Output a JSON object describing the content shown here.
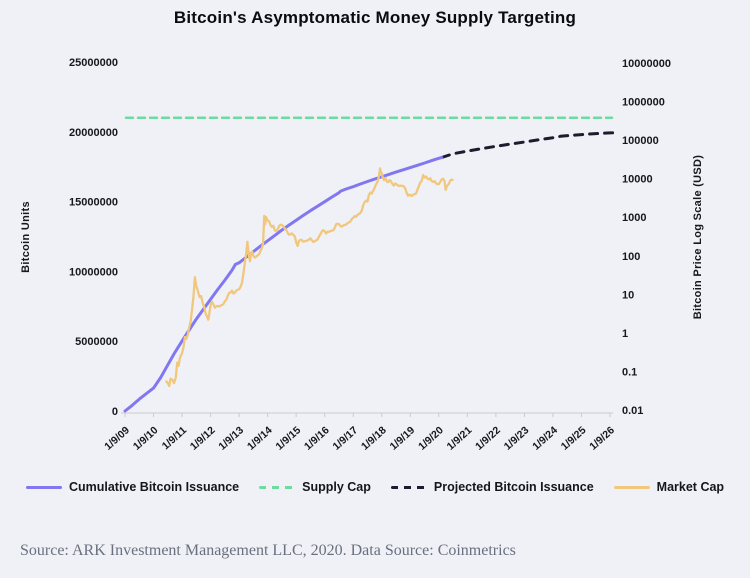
{
  "title": "Bitcoin's Asymptomatic Money Supply Targeting",
  "footer": {
    "source": "Source: ARK Investment Management LLC, 2020. Data Source: Coinmetrics"
  },
  "colors": {
    "background": "#f0f1f6",
    "axis": "#c9cad3",
    "text": "#17171f",
    "footer_text": "#68707f"
  },
  "chart_data": {
    "type": "line",
    "title": "Bitcoin's Asymptomatic Money Supply Targeting",
    "x_axis": {
      "tick_labels": [
        "1/9/09",
        "1/9/10",
        "1/9/11",
        "1/9/12",
        "1/9/13",
        "1/9/14",
        "1/9/15",
        "1/9/16",
        "1/9/17",
        "1/9/18",
        "1/9/19",
        "1/9/20",
        "1/9/21",
        "1/9/22",
        "1/9/23",
        "1/9/24",
        "1/9/25",
        "1/9/26"
      ],
      "range_years": [
        0,
        17
      ]
    },
    "y_axis_left": {
      "label": "Bitcoin Units",
      "scale": "linear",
      "range": [
        0,
        25000000
      ],
      "ticks": [
        0,
        5000000,
        10000000,
        15000000,
        20000000,
        25000000
      ]
    },
    "y_axis_right": {
      "label": "Bitcoin Price Log Scale (USD)",
      "scale": "log",
      "range": [
        0.01,
        10000000
      ],
      "ticks": [
        0.01,
        0.1,
        1,
        10,
        100,
        1000,
        10000,
        100000,
        1000000,
        10000000
      ]
    },
    "grid": false,
    "legend_position": "bottom",
    "series": [
      {
        "name": "Cumulative Bitcoin Issuance",
        "slug": "cumulative-bitcoin-issuance",
        "axis": "left",
        "color": "#8177f1",
        "style": "solid",
        "width": 3,
        "dash": "",
        "points": [
          [
            0,
            0
          ],
          [
            0.25,
            400000
          ],
          [
            0.5,
            850000
          ],
          [
            0.75,
            1250000
          ],
          [
            1,
            1640000
          ],
          [
            1.25,
            2400000
          ],
          [
            1.5,
            3300000
          ],
          [
            1.75,
            4200000
          ],
          [
            2,
            5020000
          ],
          [
            2.25,
            5800000
          ],
          [
            2.5,
            6580000
          ],
          [
            2.75,
            7300000
          ],
          [
            3,
            8000000
          ],
          [
            3.25,
            8700000
          ],
          [
            3.5,
            9380000
          ],
          [
            3.75,
            10080000
          ],
          [
            3.87,
            10500000
          ],
          [
            4,
            10613000
          ],
          [
            4.25,
            11020000
          ],
          [
            4.5,
            11420000
          ],
          [
            4.75,
            11810000
          ],
          [
            5,
            12190000
          ],
          [
            5.25,
            12580000
          ],
          [
            5.5,
            12960000
          ],
          [
            5.75,
            13320000
          ],
          [
            6,
            13670000
          ],
          [
            6.25,
            14010000
          ],
          [
            6.5,
            14350000
          ],
          [
            6.75,
            14670000
          ],
          [
            7,
            14990000
          ],
          [
            7.25,
            15320000
          ],
          [
            7.5,
            15640000
          ],
          [
            7.56,
            15750000
          ],
          [
            7.75,
            15900000
          ],
          [
            8,
            16070000
          ],
          [
            8.25,
            16260000
          ],
          [
            8.5,
            16440000
          ],
          [
            8.75,
            16610000
          ],
          [
            9,
            16775000
          ],
          [
            9.25,
            16950000
          ],
          [
            9.5,
            17115000
          ],
          [
            9.75,
            17280000
          ],
          [
            10,
            17435000
          ],
          [
            10.25,
            17600000
          ],
          [
            10.5,
            17765000
          ],
          [
            10.75,
            17935000
          ],
          [
            11,
            18100000
          ],
          [
            11.1,
            18160000
          ]
        ]
      },
      {
        "name": "Supply Cap",
        "slug": "supply-cap",
        "axis": "left",
        "color": "#6edba1",
        "style": "dashed",
        "width": 2.5,
        "dash": "7 5",
        "value": 21000000
      },
      {
        "name": "Projected Bitcoin Issuance",
        "slug": "projected-bitcoin-issuance",
        "axis": "left",
        "color": "#1c1c2e",
        "style": "dashed",
        "width": 3,
        "dash": "8 7",
        "points": [
          [
            11.1,
            18160000
          ],
          [
            11.4,
            18360000
          ],
          [
            11.6,
            18470000
          ],
          [
            12,
            18620000
          ],
          [
            12.5,
            18800000
          ],
          [
            13,
            18960000
          ],
          [
            13.5,
            19120000
          ],
          [
            14,
            19270000
          ],
          [
            14.5,
            19430000
          ],
          [
            15,
            19580000
          ],
          [
            15.3,
            19690000
          ],
          [
            15.7,
            19750000
          ],
          [
            16,
            19800000
          ],
          [
            16.5,
            19870000
          ],
          [
            17,
            19920000
          ],
          [
            17.1,
            19930000
          ]
        ]
      },
      {
        "name": "Market Cap",
        "slug": "market-cap",
        "axis": "right",
        "color": "#f1c77e",
        "style": "solid",
        "width": 2.3,
        "dash": "",
        "points": [
          [
            1.45,
            0.055
          ],
          [
            1.5,
            0.05
          ],
          [
            1.55,
            0.042
          ],
          [
            1.6,
            0.065
          ],
          [
            1.67,
            0.06
          ],
          [
            1.72,
            0.05
          ],
          [
            1.78,
            0.07
          ],
          [
            1.83,
            0.17
          ],
          [
            1.88,
            0.14
          ],
          [
            1.92,
            0.22
          ],
          [
            2,
            0.3
          ],
          [
            2.05,
            0.42
          ],
          [
            2.1,
            0.78
          ],
          [
            2.15,
            0.7
          ],
          [
            2.2,
            0.9
          ],
          [
            2.25,
            1.4
          ],
          [
            2.3,
            1.9
          ],
          [
            2.35,
            4
          ],
          [
            2.4,
            9
          ],
          [
            2.45,
            28
          ],
          [
            2.5,
            16
          ],
          [
            2.53,
            14
          ],
          [
            2.57,
            11
          ],
          [
            2.62,
            8.5
          ],
          [
            2.67,
            9
          ],
          [
            2.72,
            6
          ],
          [
            2.78,
            4.6
          ],
          [
            2.83,
            3.1
          ],
          [
            2.88,
            2.6
          ],
          [
            2.92,
            2.2
          ],
          [
            2.96,
            3.3
          ],
          [
            3,
            5.3
          ],
          [
            3.05,
            6.4
          ],
          [
            3.1,
            5.5
          ],
          [
            3.15,
            4.5
          ],
          [
            3.2,
            4.9
          ],
          [
            3.25,
            5
          ],
          [
            3.3,
            4.8
          ],
          [
            3.35,
            5.1
          ],
          [
            3.4,
            5.3
          ],
          [
            3.45,
            5.6
          ],
          [
            3.5,
            6.6
          ],
          [
            3.55,
            7.2
          ],
          [
            3.6,
            9
          ],
          [
            3.65,
            10.9
          ],
          [
            3.7,
            11.2
          ],
          [
            3.75,
            12.4
          ],
          [
            3.8,
            10.5
          ],
          [
            3.85,
            11
          ],
          [
            3.9,
            12.5
          ],
          [
            3.95,
            13.2
          ],
          [
            4,
            13.5
          ],
          [
            4.05,
            15.5
          ],
          [
            4.1,
            20
          ],
          [
            4.15,
            34
          ],
          [
            4.2,
            65
          ],
          [
            4.25,
            120
          ],
          [
            4.29,
            230
          ],
          [
            4.32,
            140
          ],
          [
            4.35,
            95
          ],
          [
            4.38,
            72
          ],
          [
            4.42,
            118
          ],
          [
            4.46,
            128
          ],
          [
            4.5,
            100
          ],
          [
            4.55,
            90
          ],
          [
            4.6,
            95
          ],
          [
            4.65,
            103
          ],
          [
            4.7,
            110
          ],
          [
            4.75,
            133
          ],
          [
            4.8,
            160
          ],
          [
            4.84,
            210
          ],
          [
            4.88,
            1080
          ],
          [
            4.91,
            650
          ],
          [
            4.94,
            1020
          ],
          [
            5,
            820
          ],
          [
            5.05,
            780
          ],
          [
            5.1,
            625
          ],
          [
            5.15,
            560
          ],
          [
            5.2,
            600
          ],
          [
            5.25,
            455
          ],
          [
            5.3,
            440
          ],
          [
            5.35,
            480
          ],
          [
            5.4,
            590
          ],
          [
            5.45,
            640
          ],
          [
            5.5,
            625
          ],
          [
            5.55,
            585
          ],
          [
            5.6,
            505
          ],
          [
            5.65,
            475
          ],
          [
            5.7,
            400
          ],
          [
            5.75,
            350
          ],
          [
            5.8,
            365
          ],
          [
            5.85,
            380
          ],
          [
            5.9,
            345
          ],
          [
            5.95,
            320
          ],
          [
            6,
            222
          ],
          [
            6.05,
            180
          ],
          [
            6.1,
            245
          ],
          [
            6.15,
            260
          ],
          [
            6.2,
            255
          ],
          [
            6.25,
            232
          ],
          [
            6.3,
            238
          ],
          [
            6.35,
            242
          ],
          [
            6.4,
            250
          ],
          [
            6.45,
            265
          ],
          [
            6.5,
            284
          ],
          [
            6.55,
            250
          ],
          [
            6.6,
            228
          ],
          [
            6.65,
            237
          ],
          [
            6.7,
            250
          ],
          [
            6.75,
            268
          ],
          [
            6.8,
            315
          ],
          [
            6.85,
            362
          ],
          [
            6.9,
            430
          ],
          [
            6.95,
            460
          ],
          [
            7,
            432
          ],
          [
            7.05,
            378
          ],
          [
            7.1,
            420
          ],
          [
            7.15,
            416
          ],
          [
            7.2,
            440
          ],
          [
            7.25,
            450
          ],
          [
            7.3,
            455
          ],
          [
            7.35,
            530
          ],
          [
            7.4,
            655
          ],
          [
            7.45,
            680
          ],
          [
            7.5,
            662
          ],
          [
            7.55,
            590
          ],
          [
            7.6,
            575
          ],
          [
            7.65,
            610
          ],
          [
            7.7,
            628
          ],
          [
            7.75,
            645
          ],
          [
            7.8,
            700
          ],
          [
            7.85,
            738
          ],
          [
            7.9,
            770
          ],
          [
            7.95,
            900
          ],
          [
            8,
            965
          ],
          [
            8.05,
            1070
          ],
          [
            8.1,
            1020
          ],
          [
            8.15,
            1150
          ],
          [
            8.2,
            1210
          ],
          [
            8.25,
            1290
          ],
          [
            8.3,
            1500
          ],
          [
            8.35,
            2050
          ],
          [
            8.4,
            2450
          ],
          [
            8.45,
            2700
          ],
          [
            8.5,
            2550
          ],
          [
            8.55,
            3800
          ],
          [
            8.6,
            4350
          ],
          [
            8.65,
            4100
          ],
          [
            8.7,
            4900
          ],
          [
            8.75,
            5750
          ],
          [
            8.8,
            7200
          ],
          [
            8.85,
            8200
          ],
          [
            8.9,
            11500
          ],
          [
            8.94,
            18500
          ],
          [
            8.97,
            14200
          ],
          [
            9,
            13800
          ],
          [
            9.03,
            11000
          ],
          [
            9.08,
            9200
          ],
          [
            9.13,
            10500
          ],
          [
            9.17,
            8600
          ],
          [
            9.22,
            8100
          ],
          [
            9.27,
            9200
          ],
          [
            9.32,
            8600
          ],
          [
            9.37,
            7400
          ],
          [
            9.42,
            6600
          ],
          [
            9.47,
            7500
          ],
          [
            9.52,
            7100
          ],
          [
            9.57,
            6700
          ],
          [
            9.62,
            6450
          ],
          [
            9.67,
            6600
          ],
          [
            9.72,
            6500
          ],
          [
            9.77,
            6350
          ],
          [
            9.82,
            5600
          ],
          [
            9.87,
            4300
          ],
          [
            9.92,
            3600
          ],
          [
            9.97,
            3850
          ],
          [
            10,
            3700
          ],
          [
            10.05,
            3550
          ],
          [
            10.1,
            3850
          ],
          [
            10.15,
            3950
          ],
          [
            10.2,
            4100
          ],
          [
            10.25,
            5150
          ],
          [
            10.3,
            6500
          ],
          [
            10.35,
            8000
          ],
          [
            10.4,
            8700
          ],
          [
            10.45,
            12400
          ],
          [
            10.5,
            10700
          ],
          [
            10.55,
            11300
          ],
          [
            10.6,
            10100
          ],
          [
            10.65,
            9500
          ],
          [
            10.7,
            10300
          ],
          [
            10.75,
            8600
          ],
          [
            10.8,
            8300
          ],
          [
            10.85,
            8650
          ],
          [
            10.9,
            7600
          ],
          [
            10.95,
            7250
          ],
          [
            11,
            7200
          ],
          [
            11.05,
            8300
          ],
          [
            11.1,
            9600
          ],
          [
            11.15,
            9950
          ],
          [
            11.2,
            8700
          ],
          [
            11.24,
            5100
          ],
          [
            11.28,
            6400
          ],
          [
            11.32,
            6900
          ],
          [
            11.36,
            7600
          ],
          [
            11.4,
            8900
          ],
          [
            11.44,
            9450
          ],
          [
            11.48,
            9300
          ]
        ]
      }
    ]
  }
}
